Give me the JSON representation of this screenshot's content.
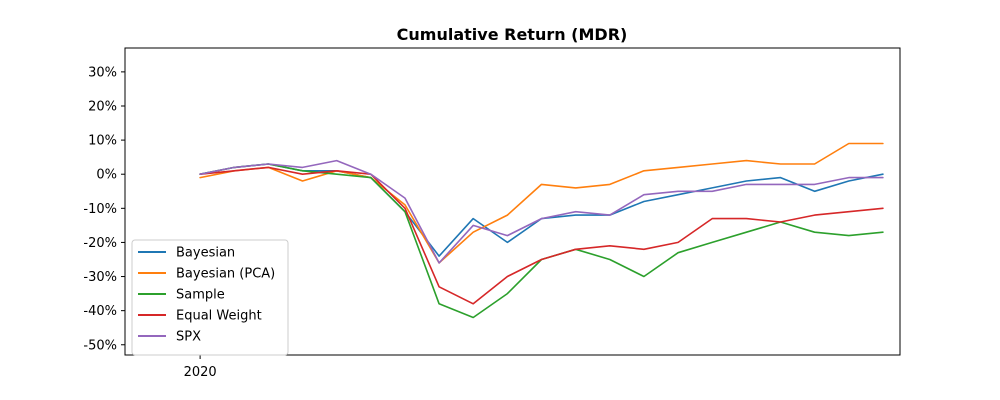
{
  "chart_data": {
    "type": "line",
    "title": "Cumulative Return (MDR)",
    "xlabel": "",
    "ylabel": "",
    "x_tick_labels": [
      "2020"
    ],
    "y_ticks": [
      -50,
      -40,
      -30,
      -20,
      -10,
      0,
      10,
      20,
      30
    ],
    "y_tick_labels": [
      "-50%",
      "-40%",
      "-30%",
      "-20%",
      "-10%",
      "0%",
      "10%",
      "20%",
      "30%"
    ],
    "ylim": [
      -53,
      37
    ],
    "xlim": [
      -22,
      205
    ],
    "grid": false,
    "legend_position": "lower-left",
    "x": [
      0,
      10,
      20,
      30,
      40,
      50,
      60,
      70,
      80,
      90,
      100,
      110,
      120,
      130,
      140,
      150,
      160,
      170,
      180,
      190,
      200
    ],
    "series": [
      {
        "name": "Bayesian",
        "color": "#1f77b4",
        "values": [
          0,
          2,
          3,
          1,
          1,
          -1,
          -11,
          -24,
          -13,
          -20,
          -13,
          -12,
          -12,
          -8,
          -6,
          -4,
          -2,
          -1,
          -5,
          -2,
          0
        ]
      },
      {
        "name": "Bayesian (PCA)",
        "color": "#ff7f0e",
        "values": [
          -1,
          1,
          2,
          -2,
          1,
          -1,
          -9,
          -26,
          -17,
          -12,
          -3,
          -4,
          -3,
          1,
          2,
          3,
          4,
          3,
          3,
          9,
          9
        ]
      },
      {
        "name": "Sample",
        "color": "#2ca02c",
        "values": [
          0,
          2,
          3,
          1,
          0,
          -1,
          -11,
          -38,
          -42,
          -35,
          -25,
          -22,
          -25,
          -30,
          -23,
          -20,
          -17,
          -14,
          -17,
          -18,
          -17
        ]
      },
      {
        "name": "Equal Weight",
        "color": "#d62728",
        "values": [
          0,
          1,
          2,
          0,
          1,
          0,
          -10,
          -33,
          -38,
          -30,
          -25,
          -22,
          -21,
          -22,
          -20,
          -13,
          -13,
          -14,
          -12,
          -11,
          -10
        ]
      },
      {
        "name": "SPX",
        "color": "#9467bd",
        "values": [
          0,
          2,
          3,
          2,
          4,
          0,
          -7,
          -26,
          -15,
          -18,
          -13,
          -11,
          -12,
          -6,
          -5,
          -5,
          -3,
          -3,
          -3,
          -1,
          -1
        ]
      }
    ]
  }
}
